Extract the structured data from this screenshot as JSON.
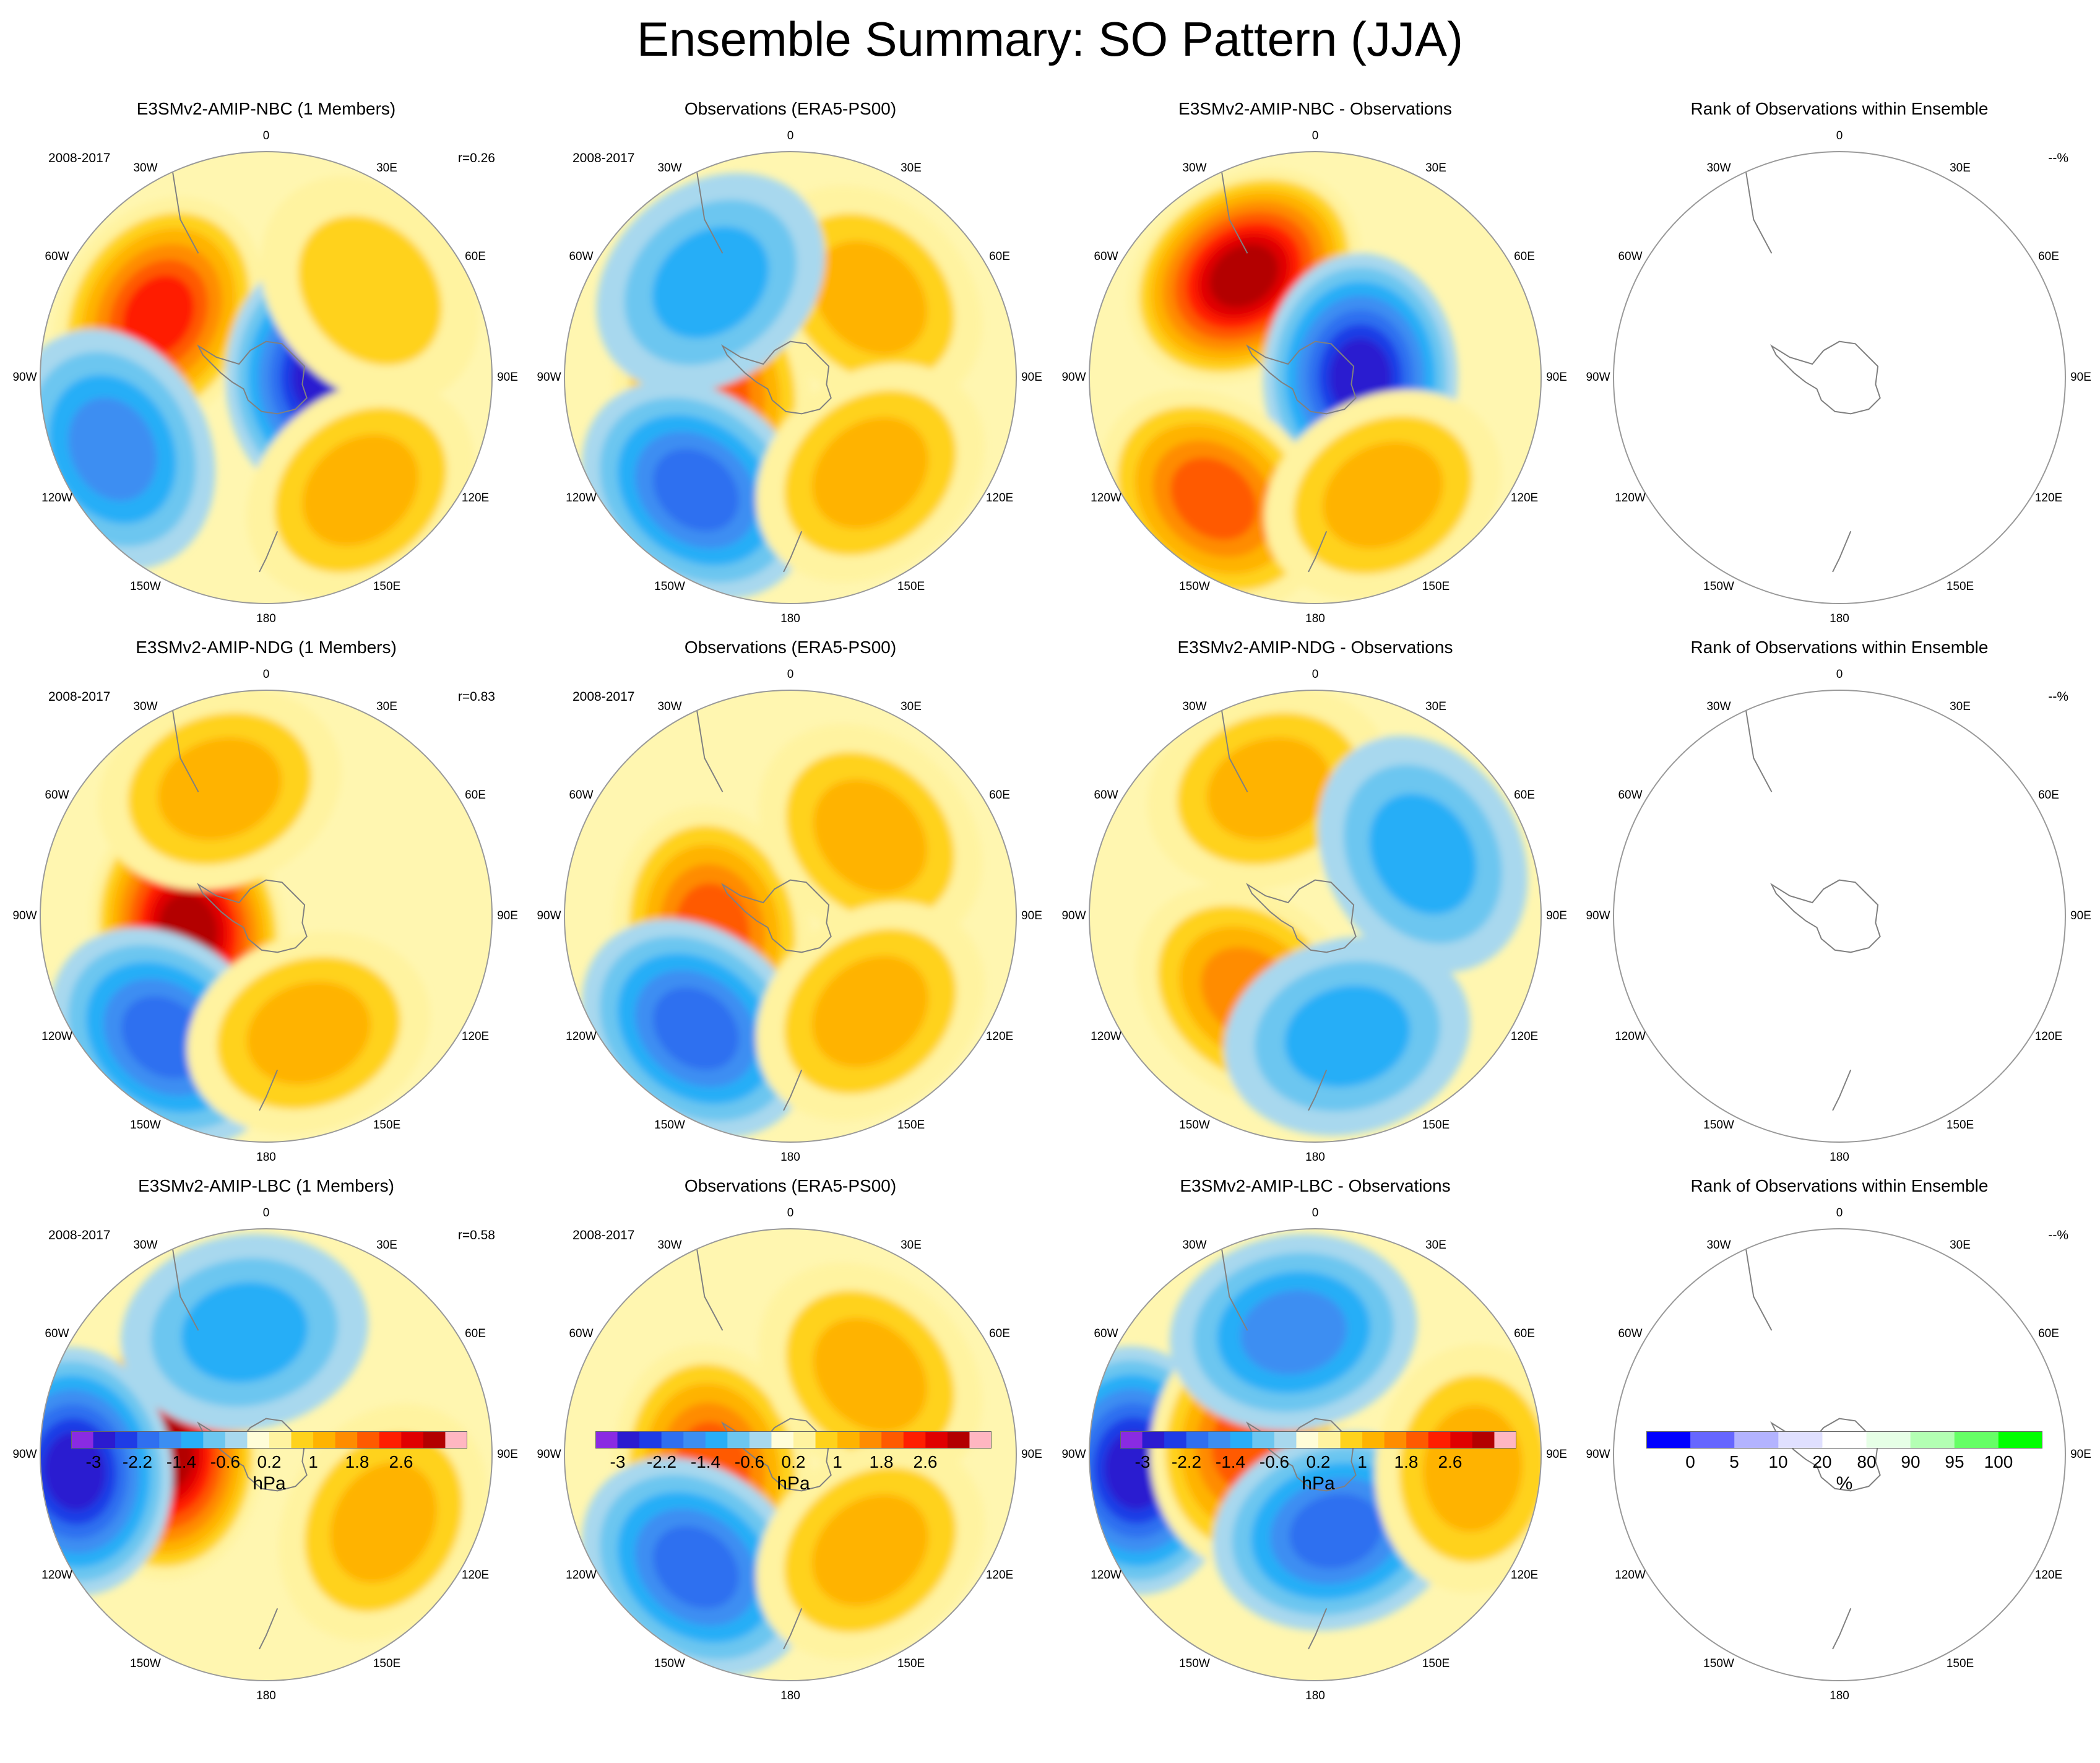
{
  "title": "Ensemble Summary: SO Pattern (JJA)",
  "longitude_labels": {
    "top": "0",
    "ne30": "30E",
    "ne60": "60E",
    "e90": "90E",
    "se120": "120E",
    "se150": "150E",
    "bottom": "180",
    "sw150": "150W",
    "sw120": "120W",
    "w90": "90W",
    "nw60": "60W",
    "nw30": "30W"
  },
  "rows": [
    {
      "model": {
        "title": "E3SMv2-AMIP-NBC (1 Members)",
        "period": "2008-2017",
        "corr": "r=0.26"
      },
      "obs": {
        "title": "Observations (ERA5-PS00)",
        "period": "2008-2017"
      },
      "diff": {
        "title": "E3SMv2-AMIP-NBC - Observations"
      },
      "rank": {
        "title": "Rank of Observations within Ensemble",
        "pct": "--%"
      }
    },
    {
      "model": {
        "title": "E3SMv2-AMIP-NDG (1 Members)",
        "period": "2008-2017",
        "corr": "r=0.83"
      },
      "obs": {
        "title": "Observations (ERA5-PS00)",
        "period": "2008-2017"
      },
      "diff": {
        "title": "E3SMv2-AMIP-NDG - Observations"
      },
      "rank": {
        "title": "Rank of Observations within Ensemble",
        "pct": "--%"
      }
    },
    {
      "model": {
        "title": "E3SMv2-AMIP-LBC (1 Members)",
        "period": "2008-2017",
        "corr": "r=0.58"
      },
      "obs": {
        "title": "Observations (ERA5-PS00)",
        "period": "2008-2017"
      },
      "diff": {
        "title": "E3SMv2-AMIP-LBC - Observations"
      },
      "rank": {
        "title": "Rank of Observations within Ensemble",
        "pct": "--%"
      }
    }
  ],
  "pressure_colorbar": {
    "unit": "hPa",
    "ticks": [
      "-3",
      "-2.2",
      "-1.4",
      "-0.6",
      "0.2",
      "1",
      "1.8",
      "2.6"
    ],
    "colors": [
      "#8a2be2",
      "#2b1bd0",
      "#1e3ce6",
      "#2f6ff0",
      "#3c8ef2",
      "#28aef7",
      "#6cc6f0",
      "#a8d8ee",
      "#fffdd8",
      "#fff3a0",
      "#ffd21c",
      "#ffb300",
      "#ff8c00",
      "#ff5a00",
      "#ff1e00",
      "#e00000",
      "#b30000",
      "#ffb6c1"
    ]
  },
  "rank_colorbar": {
    "unit": "%",
    "ticks": [
      "0",
      "5",
      "10",
      "20",
      "80",
      "90",
      "95",
      "100"
    ],
    "colors": [
      "#0000ff",
      "#6666ff",
      "#b3b3ff",
      "#e0e0ff",
      "#ffffff",
      "#e6ffe6",
      "#b3ffb3",
      "#66ff66",
      "#00ff00"
    ]
  },
  "map_data": [
    {
      "panel": "r0-model",
      "features": [
        {
          "kind": "high",
          "lon": -60,
          "r": 0.55,
          "value": 2.4
        },
        {
          "kind": "low",
          "lon": 90,
          "r": 0.25,
          "value": -2.6
        },
        {
          "kind": "low",
          "lon": -115,
          "r": 0.75,
          "value": -1.6
        },
        {
          "kind": "high",
          "lon": 140,
          "r": 0.65,
          "value": 1.4
        },
        {
          "kind": "high",
          "lon": 50,
          "r": 0.6,
          "value": 0.9
        }
      ]
    },
    {
      "panel": "r0-obs",
      "features": [
        {
          "kind": "high",
          "lon": -100,
          "r": 0.35,
          "value": 2.0
        },
        {
          "kind": "low",
          "lon": -140,
          "r": 0.65,
          "value": -2.0
        },
        {
          "kind": "high",
          "lon": 45,
          "r": 0.5,
          "value": 1.2
        },
        {
          "kind": "high",
          "lon": 140,
          "r": 0.55,
          "value": 1.0
        },
        {
          "kind": "low",
          "lon": -40,
          "r": 0.55,
          "value": -1.0
        }
      ]
    },
    {
      "panel": "r0-diff",
      "features": [
        {
          "kind": "high",
          "lon": -35,
          "r": 0.55,
          "value": 3.2
        },
        {
          "kind": "low",
          "lon": 90,
          "r": 0.2,
          "value": -2.6
        },
        {
          "kind": "high",
          "lon": -140,
          "r": 0.7,
          "value": 1.8
        },
        {
          "kind": "high",
          "lon": 150,
          "r": 0.6,
          "value": 1.0
        }
      ]
    },
    {
      "panel": "r1-model",
      "features": [
        {
          "kind": "high",
          "lon": -100,
          "r": 0.35,
          "value": 3.0
        },
        {
          "kind": "low",
          "lon": -140,
          "r": 0.7,
          "value": -2.0
        },
        {
          "kind": "high",
          "lon": -20,
          "r": 0.6,
          "value": 1.2
        },
        {
          "kind": "high",
          "lon": 160,
          "r": 0.55,
          "value": 1.0
        }
      ]
    },
    {
      "panel": "r1-obs",
      "features": [
        {
          "kind": "high",
          "lon": -100,
          "r": 0.35,
          "value": 2.0
        },
        {
          "kind": "low",
          "lon": -140,
          "r": 0.65,
          "value": -2.0
        },
        {
          "kind": "high",
          "lon": 45,
          "r": 0.5,
          "value": 1.2
        },
        {
          "kind": "high",
          "lon": 140,
          "r": 0.55,
          "value": 1.0
        }
      ]
    },
    {
      "panel": "r1-diff",
      "features": [
        {
          "kind": "high",
          "lon": -20,
          "r": 0.6,
          "value": 1.0
        },
        {
          "kind": "high",
          "lon": -140,
          "r": 0.45,
          "value": 1.6
        },
        {
          "kind": "low",
          "lon": 60,
          "r": 0.55,
          "value": -1.0
        },
        {
          "kind": "low",
          "lon": 165,
          "r": 0.55,
          "value": -1.2
        }
      ]
    },
    {
      "panel": "r2-model",
      "features": [
        {
          "kind": "high",
          "lon": -90,
          "r": 0.45,
          "value": 3.0
        },
        {
          "kind": "low",
          "lon": -95,
          "r": 0.85,
          "value": -2.6
        },
        {
          "kind": "low",
          "lon": -10,
          "r": 0.55,
          "value": -1.4
        },
        {
          "kind": "high",
          "lon": 120,
          "r": 0.6,
          "value": 1.2
        }
      ]
    },
    {
      "panel": "r2-obs",
      "features": [
        {
          "kind": "high",
          "lon": -100,
          "r": 0.35,
          "value": 2.0
        },
        {
          "kind": "low",
          "lon": -140,
          "r": 0.65,
          "value": -2.0
        },
        {
          "kind": "high",
          "lon": 45,
          "r": 0.5,
          "value": 1.2
        },
        {
          "kind": "high",
          "lon": 140,
          "r": 0.55,
          "value": 1.0
        }
      ]
    },
    {
      "panel": "r2-diff",
      "features": [
        {
          "kind": "low",
          "lon": -95,
          "r": 0.8,
          "value": -2.6
        },
        {
          "kind": "high",
          "lon": -80,
          "r": 0.3,
          "value": 2.0
        },
        {
          "kind": "low",
          "lon": -10,
          "r": 0.55,
          "value": -1.6
        },
        {
          "kind": "low",
          "lon": 165,
          "r": 0.35,
          "value": -1.8
        },
        {
          "kind": "high",
          "lon": 95,
          "r": 0.7,
          "value": 1.2
        }
      ]
    }
  ]
}
